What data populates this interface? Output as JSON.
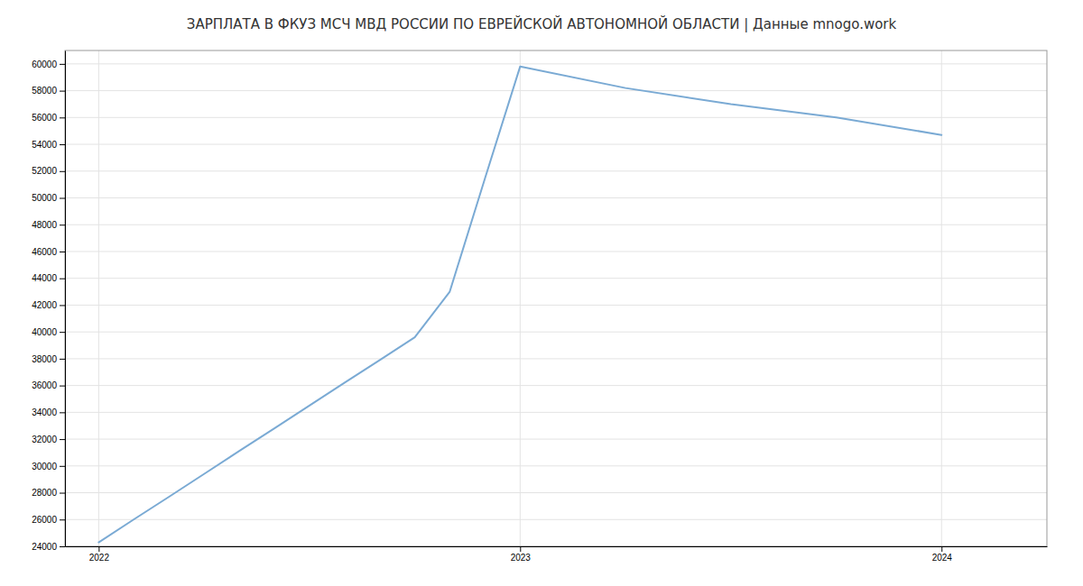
{
  "chart_data": {
    "type": "line",
    "title": "ЗАРПЛАТА В ФКУЗ МСЧ МВД РОССИИ ПО ЕВРЕЙСКОЙ АВТОНОМНОЙ ОБЛАСТИ | Данные mnogo.work",
    "x": [
      2022.0,
      2022.083,
      2022.167,
      2022.25,
      2022.333,
      2022.417,
      2022.5,
      2022.583,
      2022.667,
      2022.75,
      2022.833,
      2022.917,
      2023.0,
      2023.25,
      2023.5,
      2023.75,
      2024.0
    ],
    "values": [
      24300,
      26000,
      27700,
      29400,
      31100,
      32800,
      34500,
      36200,
      37900,
      39600,
      43000,
      51500,
      59800,
      58200,
      57000,
      56000,
      54700
    ],
    "color": "#7aaad4",
    "xlim": [
      2021.92,
      2024.25
    ],
    "ylim": [
      24000,
      61000
    ],
    "xticks": [
      2022,
      2023,
      2024
    ],
    "yticks": [
      24000,
      26000,
      28000,
      30000,
      32000,
      34000,
      36000,
      38000,
      40000,
      42000,
      44000,
      46000,
      48000,
      50000,
      52000,
      54000,
      56000,
      58000,
      60000
    ],
    "grid": true
  }
}
